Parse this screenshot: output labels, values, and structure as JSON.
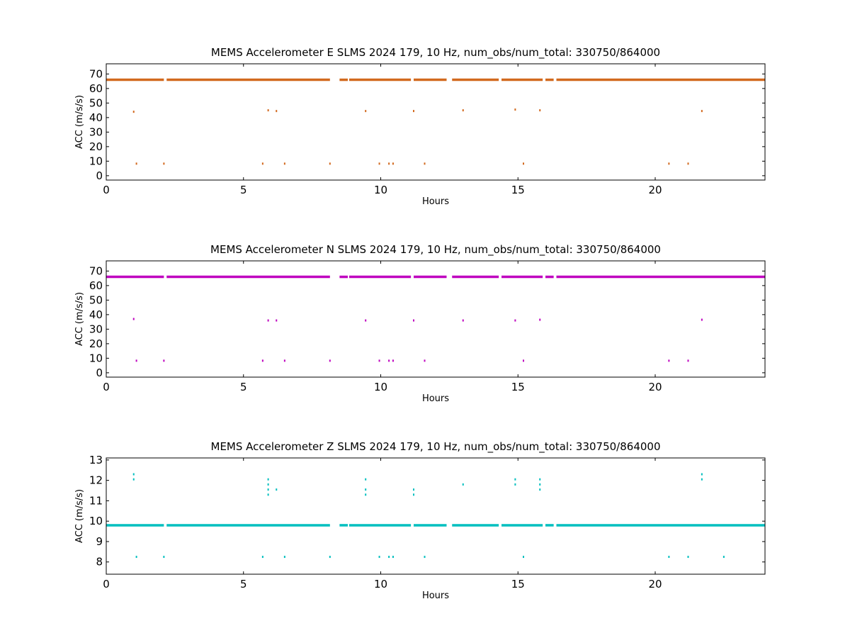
{
  "chart_data": [
    {
      "type": "scatter",
      "title": "MEMS Accelerometer E SLMS 2024 179, 10 Hz, num_obs/num_total: 330750/864000",
      "xlabel": "Hours",
      "ylabel": "ACC (m/s/s)",
      "xlim": [
        0,
        24
      ],
      "ylim": [
        -3,
        77
      ],
      "xticks": [
        "0",
        "5",
        "10",
        "15",
        "20"
      ],
      "yticks": [
        "0",
        "10",
        "20",
        "30",
        "40",
        "50",
        "60",
        "70"
      ],
      "color": "#d2691e",
      "grid": false,
      "main_level": 66,
      "main_segments": [
        [
          0,
          2.1
        ],
        [
          2.2,
          8.15
        ],
        [
          8.5,
          8.8
        ],
        [
          8.85,
          11.1
        ],
        [
          11.2,
          12.4
        ],
        [
          12.6,
          14.3
        ],
        [
          14.4,
          15.9
        ],
        [
          16.0,
          16.3
        ],
        [
          16.4,
          24
        ]
      ],
      "outliers": [
        [
          1.0,
          44
        ],
        [
          5.9,
          45
        ],
        [
          6.2,
          44.5
        ],
        [
          9.45,
          44.5
        ],
        [
          11.2,
          44.5
        ],
        [
          13.0,
          45
        ],
        [
          14.9,
          45.5
        ],
        [
          15.8,
          45
        ],
        [
          21.7,
          44.5
        ],
        [
          1.1,
          8.3
        ],
        [
          2.1,
          8.3
        ],
        [
          5.7,
          8.3
        ],
        [
          6.5,
          8.3
        ],
        [
          8.15,
          8.3
        ],
        [
          9.95,
          8.3
        ],
        [
          10.3,
          8.3
        ],
        [
          10.45,
          8.3
        ],
        [
          11.6,
          8.3
        ],
        [
          15.2,
          8.3
        ],
        [
          20.5,
          8.3
        ],
        [
          21.2,
          8.3
        ]
      ]
    },
    {
      "type": "scatter",
      "title": "MEMS Accelerometer N SLMS 2024 179, 10 Hz, num_obs/num_total: 330750/864000",
      "xlabel": "Hours",
      "ylabel": "ACC (m/s/s)",
      "xlim": [
        0,
        24
      ],
      "ylim": [
        -3,
        77
      ],
      "xticks": [
        "0",
        "5",
        "10",
        "15",
        "20"
      ],
      "yticks": [
        "0",
        "10",
        "20",
        "30",
        "40",
        "50",
        "60",
        "70"
      ],
      "color": "#bf00bf",
      "grid": false,
      "main_level": 66,
      "main_segments": [
        [
          0,
          2.1
        ],
        [
          2.2,
          8.15
        ],
        [
          8.5,
          8.8
        ],
        [
          8.85,
          11.1
        ],
        [
          11.2,
          12.4
        ],
        [
          12.6,
          14.3
        ],
        [
          14.4,
          15.9
        ],
        [
          16.0,
          16.3
        ],
        [
          16.4,
          24
        ]
      ],
      "outliers": [
        [
          1.0,
          37
        ],
        [
          5.9,
          36
        ],
        [
          6.2,
          36
        ],
        [
          9.45,
          36
        ],
        [
          11.2,
          36
        ],
        [
          13.0,
          36
        ],
        [
          14.9,
          36
        ],
        [
          15.8,
          36.5
        ],
        [
          21.7,
          36.5
        ],
        [
          1.1,
          8.3
        ],
        [
          2.1,
          8.3
        ],
        [
          5.7,
          8.3
        ],
        [
          6.5,
          8.3
        ],
        [
          8.15,
          8.3
        ],
        [
          9.95,
          8.3
        ],
        [
          10.3,
          8.3
        ],
        [
          10.45,
          8.3
        ],
        [
          11.6,
          8.3
        ],
        [
          15.2,
          8.3
        ],
        [
          20.5,
          8.3
        ],
        [
          21.2,
          8.3
        ]
      ]
    },
    {
      "type": "scatter",
      "title": "MEMS Accelerometer Z SLMS 2024 179, 10 Hz, num_obs/num_total: 330750/864000",
      "xlabel": "Hours",
      "ylabel": "ACC (m/s/s)",
      "xlim": [
        0,
        24
      ],
      "ylim": [
        7.4,
        13.1
      ],
      "xticks": [
        "0",
        "5",
        "10",
        "15",
        "20"
      ],
      "yticks": [
        "8",
        "9",
        "10",
        "11",
        "12",
        "13"
      ],
      "color": "#00bfbf",
      "grid": false,
      "main_level": 9.8,
      "main_segments": [
        [
          0,
          2.1
        ],
        [
          2.2,
          8.15
        ],
        [
          8.5,
          8.8
        ],
        [
          8.85,
          11.1
        ],
        [
          11.2,
          12.4
        ],
        [
          12.6,
          14.3
        ],
        [
          14.4,
          15.9
        ],
        [
          16.0,
          16.3
        ],
        [
          16.4,
          24
        ]
      ],
      "outliers": [
        [
          1.0,
          12.3
        ],
        [
          1.0,
          12.05
        ],
        [
          5.9,
          12.05
        ],
        [
          5.9,
          11.8
        ],
        [
          5.9,
          11.55
        ],
        [
          5.9,
          11.3
        ],
        [
          6.2,
          11.55
        ],
        [
          9.45,
          12.05
        ],
        [
          9.45,
          11.55
        ],
        [
          9.45,
          11.3
        ],
        [
          11.2,
          11.55
        ],
        [
          11.2,
          11.3
        ],
        [
          13.0,
          11.8
        ],
        [
          14.9,
          12.05
        ],
        [
          14.9,
          11.8
        ],
        [
          15.8,
          12.05
        ],
        [
          15.8,
          11.8
        ],
        [
          15.8,
          11.55
        ],
        [
          21.7,
          12.3
        ],
        [
          21.7,
          12.05
        ],
        [
          1.1,
          8.25
        ],
        [
          2.1,
          8.25
        ],
        [
          5.7,
          8.25
        ],
        [
          6.5,
          8.25
        ],
        [
          8.15,
          8.25
        ],
        [
          9.95,
          8.25
        ],
        [
          10.3,
          8.25
        ],
        [
          10.45,
          8.25
        ],
        [
          11.6,
          8.25
        ],
        [
          15.2,
          8.25
        ],
        [
          20.5,
          8.25
        ],
        [
          21.2,
          8.25
        ],
        [
          22.5,
          8.25
        ]
      ]
    }
  ]
}
